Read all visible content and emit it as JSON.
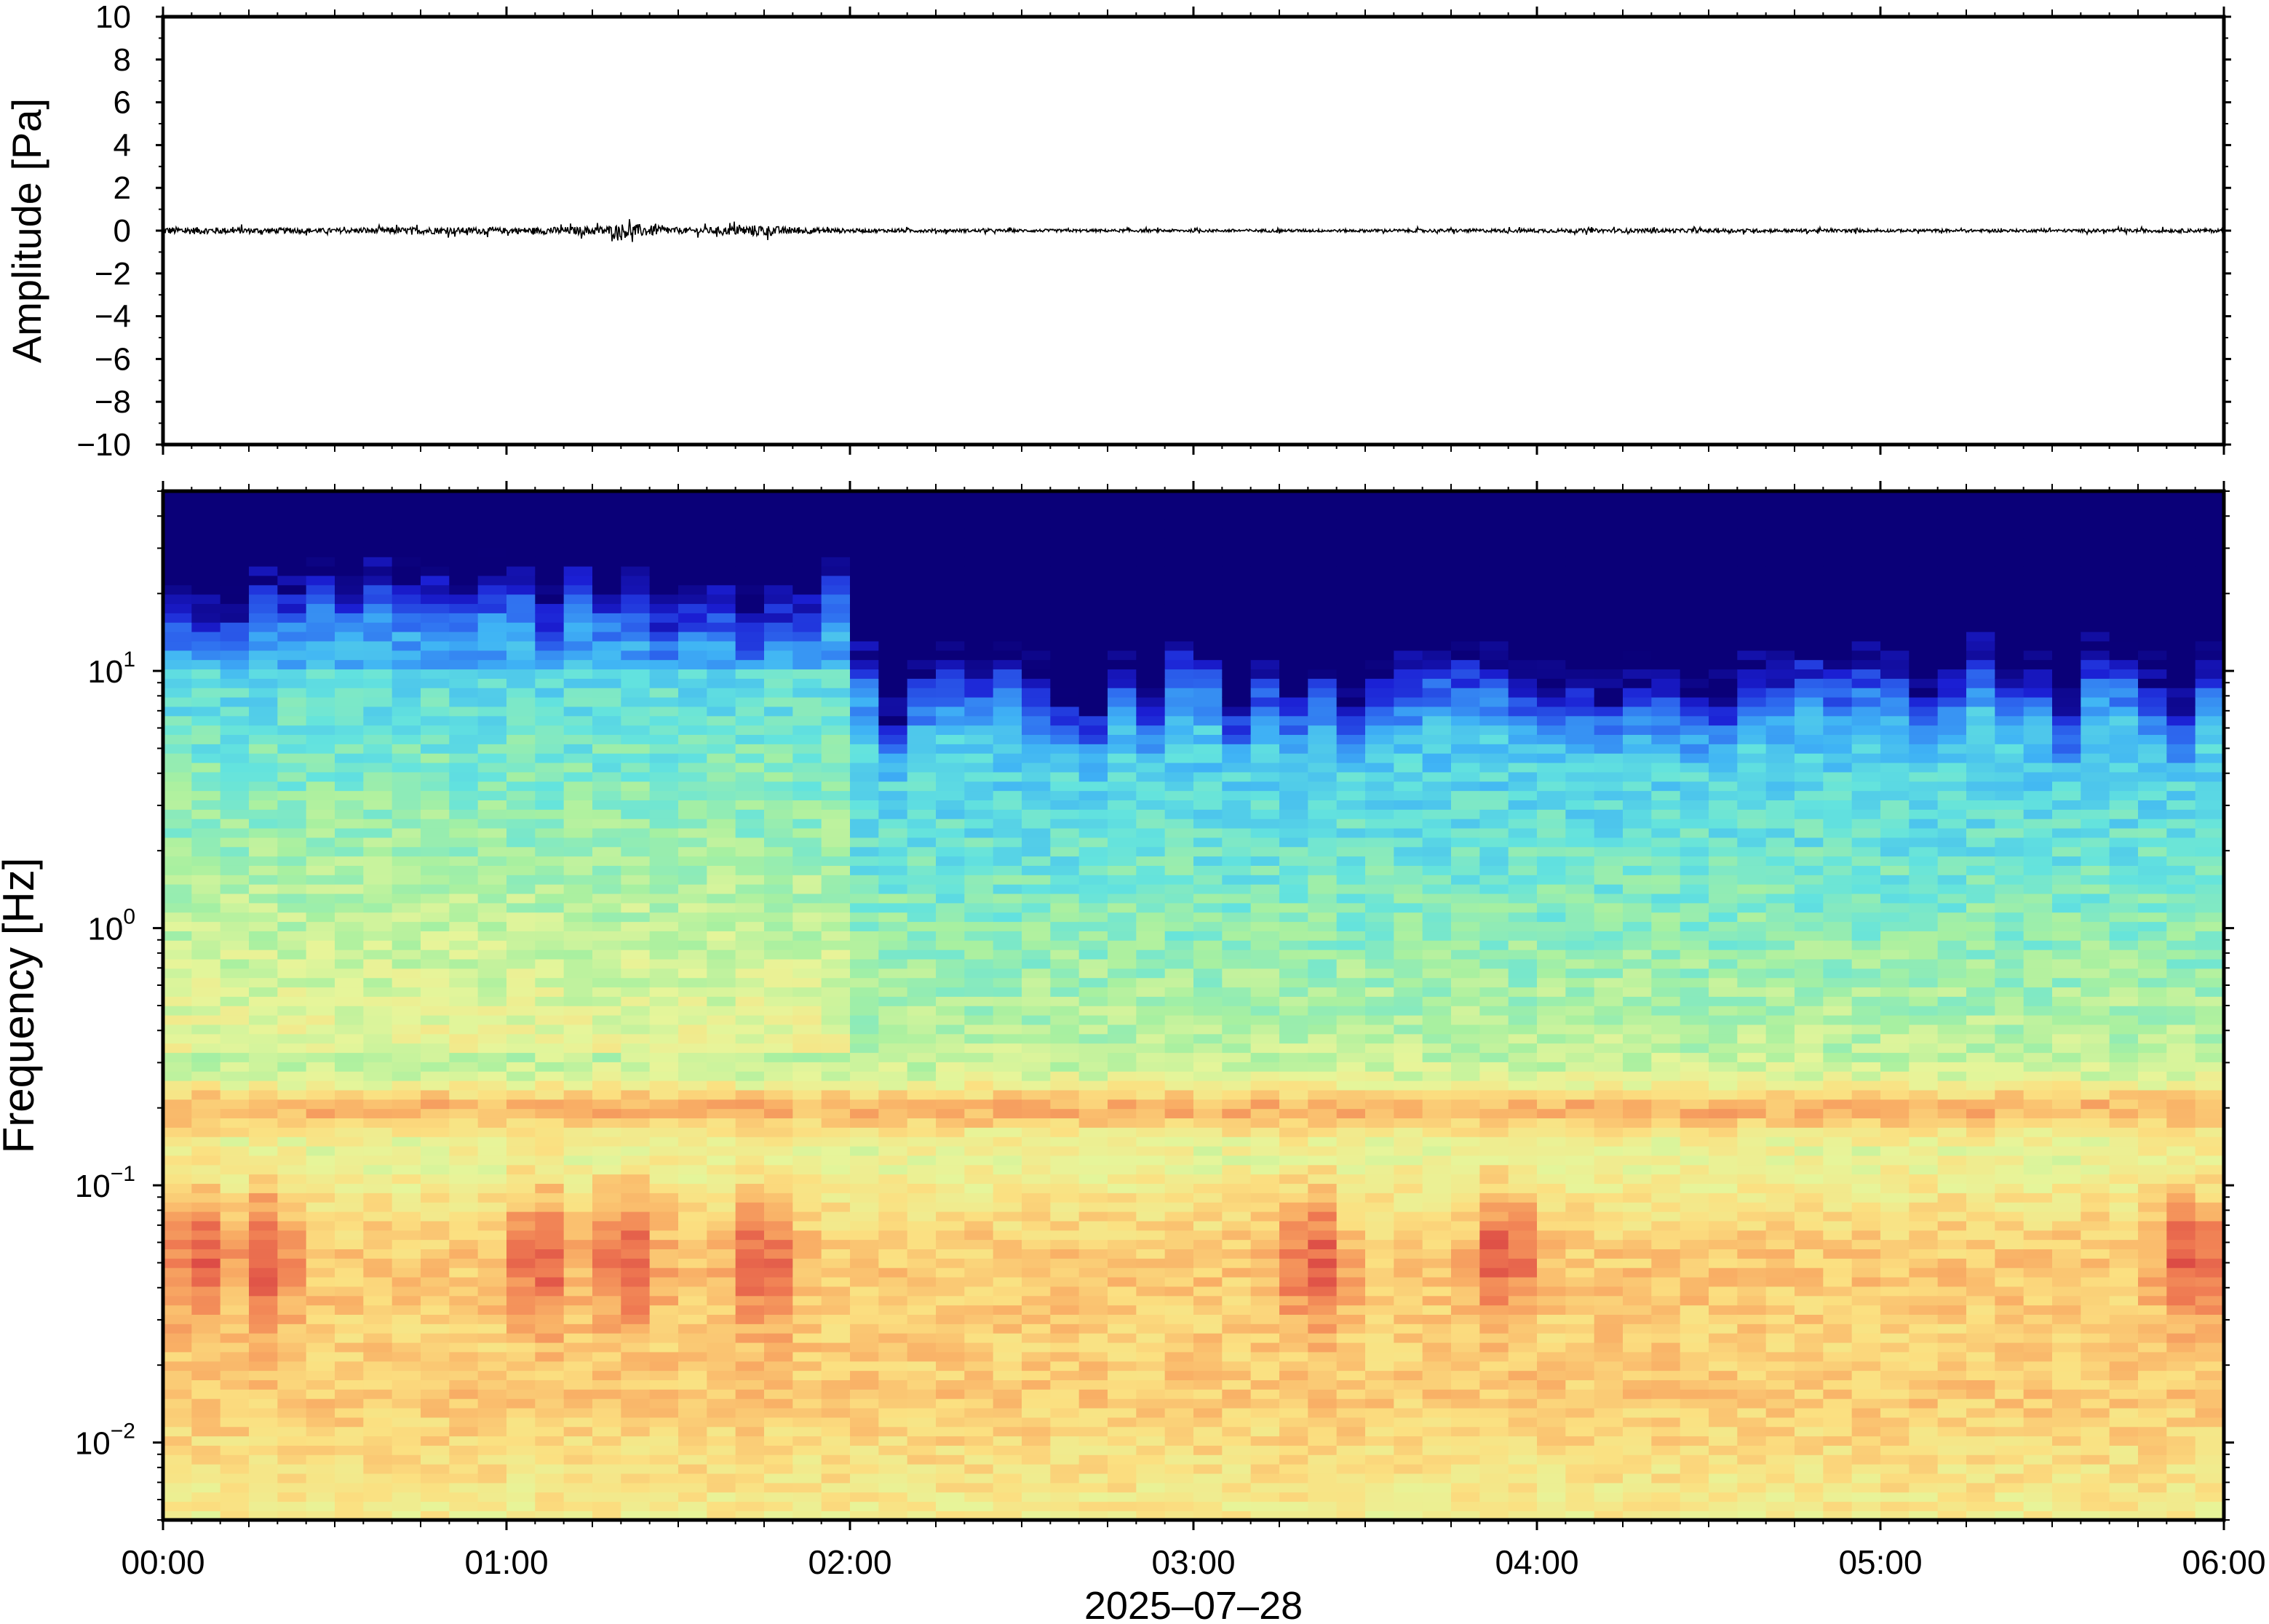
{
  "chart_data": [
    {
      "type": "line",
      "ylabel": "Amplitude [Pa]",
      "ylim": [
        -10,
        10
      ],
      "yticks": [
        10,
        8,
        6,
        4,
        2,
        0,
        -2,
        -4,
        -6,
        -8,
        -10
      ],
      "ytick_labels": [
        "10",
        "8",
        "6",
        "4",
        "2",
        "0",
        "−2",
        "−4",
        "−6",
        "−8",
        "−10"
      ],
      "xlim": [
        "00:00",
        "06:00"
      ],
      "x_unit": "hours since 2025-07-28 00:00",
      "grid": false,
      "series": [
        {
          "color": "#000000",
          "x": [
            0,
            0.25,
            0.5,
            0.75,
            1.0,
            1.1,
            1.2,
            1.3,
            1.35,
            1.4,
            1.5,
            1.6,
            1.7,
            1.75,
            1.8,
            2.0,
            2.5,
            3.0,
            3.5,
            4.0,
            4.5,
            5.0,
            5.5,
            6.0
          ],
          "envelope": [
            0.4,
            0.3,
            0.25,
            0.35,
            0.3,
            0.35,
            0.4,
            0.5,
            0.8,
            0.6,
            0.3,
            0.35,
            0.55,
            0.6,
            0.4,
            0.2,
            0.15,
            0.15,
            0.15,
            0.2,
            0.2,
            0.15,
            0.15,
            0.2
          ]
        }
      ]
    },
    {
      "type": "heatmap",
      "ylabel": "Frequency [Hz]",
      "xlabel": "2025–07–28",
      "xticks": [
        "00:00",
        "01:00",
        "02:00",
        "03:00",
        "04:00",
        "05:00",
        "06:00"
      ],
      "y_scale": "log",
      "ylim": [
        0.005,
        50
      ],
      "yticks": [
        {
          "base": "10",
          "exp": "−2",
          "value": 0.01
        },
        {
          "base": "10",
          "exp": "−1",
          "value": 0.1
        },
        {
          "base": "10",
          "exp": "0",
          "value": 1
        },
        {
          "base": "10",
          "exp": "1",
          "value": 10
        }
      ],
      "colormap": [
        "#0a0078",
        "#1b1fd4",
        "#2f6ef0",
        "#3fb3f5",
        "#63e3de",
        "#a8f0a0",
        "#e6f59a",
        "#fbe081",
        "#f9b066",
        "#ef7a52",
        "#dc4a45"
      ],
      "time_columns": 72,
      "features": {
        "upper_energy_edge_hz_first_2h": 12,
        "upper_energy_edge_hz_after_2h": 5,
        "microbarom_band_hz": 0.2,
        "low_freq_peak_band_hz": [
          0.03,
          0.1
        ],
        "low_freq_peak_times_h": [
          0.1,
          0.3,
          1.1,
          1.35,
          1.75,
          3.35,
          3.9,
          5.9
        ]
      }
    }
  ]
}
